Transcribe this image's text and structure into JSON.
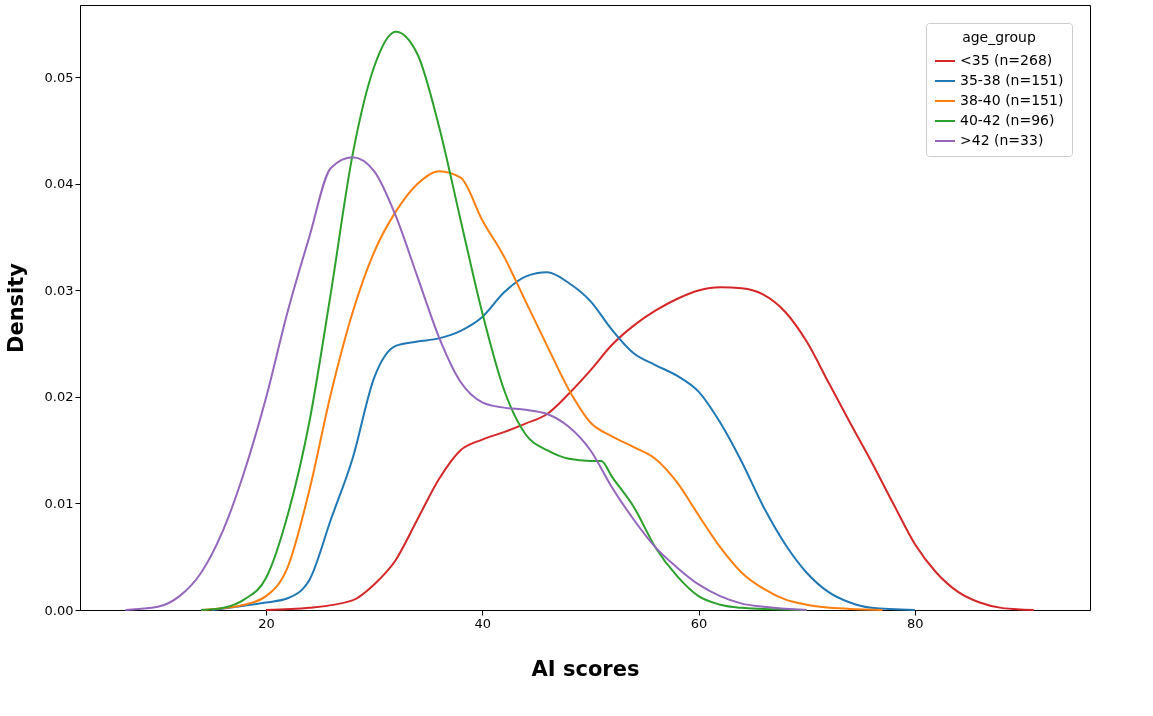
{
  "chart_data": {
    "type": "line",
    "xlabel": "AI scores",
    "ylabel": "Density",
    "legend_title": "age_group",
    "legend": "top right",
    "grid": false,
    "marker": "none",
    "line_style": "solid",
    "xlim": [
      2.8,
      96.2
    ],
    "xticks": [
      20,
      40,
      60,
      80
    ],
    "ylim": [
      0,
      0.0568
    ],
    "yticks": [
      {
        "value": 0,
        "label": "0.00"
      },
      {
        "value": 0.01,
        "label": "0.01"
      },
      {
        "value": 0.02,
        "label": "0.02"
      },
      {
        "value": 0.03,
        "label": "0.03"
      },
      {
        "value": 0.04,
        "label": "0.04"
      },
      {
        "value": 0.05,
        "label": "0.05"
      }
    ],
    "series": [
      {
        "name": "<35 (n=268)",
        "color": "#d62728",
        "x": [
          20,
          24,
          28,
          30,
          32,
          34,
          36,
          38,
          40,
          42,
          44,
          46,
          48,
          50,
          52,
          54,
          56,
          58,
          60,
          62,
          64,
          66,
          68,
          70,
          72,
          74,
          76,
          78,
          80,
          82,
          84,
          86,
          88,
          91
        ],
        "values": [
          0,
          0.0002,
          0.0009,
          0.0024,
          0.0047,
          0.0085,
          0.0123,
          0.015,
          0.016,
          0.0167,
          0.0175,
          0.0184,
          0.0203,
          0.0225,
          0.0249,
          0.0267,
          0.0281,
          0.0292,
          0.03,
          0.0303,
          0.0302,
          0.0296,
          0.028,
          0.0252,
          0.0214,
          0.0176,
          0.0139,
          0.01,
          0.0062,
          0.0035,
          0.0017,
          0.0007,
          0.0002,
          0
        ]
      },
      {
        "name": "35-38 (n=151)",
        "color": "#1f77b4",
        "x": [
          15,
          18,
          20,
          22,
          24,
          26,
          28,
          30,
          32,
          34,
          36,
          38,
          40,
          42,
          44,
          46,
          48,
          50,
          52,
          54,
          56,
          58,
          60,
          62,
          64,
          66,
          68,
          70,
          72,
          74,
          76,
          80
        ],
        "values": [
          0,
          0.0004,
          0.0007,
          0.0011,
          0.0028,
          0.0085,
          0.0142,
          0.0218,
          0.0248,
          0.0252,
          0.0255,
          0.0262,
          0.0275,
          0.0298,
          0.0313,
          0.0317,
          0.0307,
          0.029,
          0.0263,
          0.0241,
          0.023,
          0.022,
          0.0205,
          0.0176,
          0.0139,
          0.0097,
          0.0062,
          0.0035,
          0.0017,
          0.0007,
          0.0002,
          0
        ]
      },
      {
        "name": "38-40 (n=151)",
        "color": "#ff7f0e",
        "x": [
          14,
          18,
          20,
          22,
          24,
          26,
          28,
          30,
          32,
          34,
          36,
          38,
          40,
          42,
          44,
          46,
          48,
          50,
          52,
          54,
          56,
          58,
          60,
          62,
          64,
          66,
          68,
          70,
          74,
          77
        ],
        "values": [
          0,
          0.0005,
          0.0013,
          0.004,
          0.0112,
          0.0203,
          0.0279,
          0.0336,
          0.0374,
          0.04,
          0.0412,
          0.0406,
          0.0366,
          0.0332,
          0.029,
          0.0248,
          0.0207,
          0.0176,
          0.0163,
          0.0153,
          0.0142,
          0.012,
          0.0089,
          0.0059,
          0.0035,
          0.002,
          0.001,
          0.0005,
          0.0001,
          0
        ]
      },
      {
        "name": "40-42 (n=96)",
        "color": "#2ca02c",
        "x": [
          14,
          16,
          18,
          20,
          22,
          24,
          26,
          28,
          30,
          32,
          34,
          36,
          38,
          40,
          42,
          44,
          46,
          48,
          50,
          51,
          52,
          54,
          56,
          58,
          60,
          62,
          64,
          66,
          70
        ],
        "values": [
          0,
          0.0002,
          0.001,
          0.003,
          0.0089,
          0.0176,
          0.0298,
          0.0427,
          0.051,
          0.0543,
          0.0522,
          0.0454,
          0.0366,
          0.0279,
          0.0207,
          0.0165,
          0.015,
          0.0142,
          0.014,
          0.014,
          0.0125,
          0.0097,
          0.0059,
          0.0032,
          0.0013,
          0.0005,
          0.0002,
          0.0001,
          0
        ]
      },
      {
        "name": ">42 (n=33)",
        "color": "#9467bd",
        "x": [
          7,
          10,
          12,
          14,
          16,
          18,
          20,
          22,
          24,
          26,
          28,
          30,
          32,
          34,
          36,
          38,
          40,
          42,
          44,
          46,
          48,
          50,
          52,
          54,
          56,
          58,
          60,
          62,
          64,
          66,
          70
        ],
        "values": [
          0,
          0.0003,
          0.0013,
          0.0035,
          0.0074,
          0.013,
          0.0199,
          0.028,
          0.035,
          0.0415,
          0.0425,
          0.0412,
          0.037,
          0.0313,
          0.0256,
          0.0214,
          0.0195,
          0.019,
          0.0188,
          0.0184,
          0.0172,
          0.015,
          0.0115,
          0.0085,
          0.0059,
          0.004,
          0.0024,
          0.0013,
          0.0006,
          0.0003,
          0
        ]
      }
    ]
  }
}
